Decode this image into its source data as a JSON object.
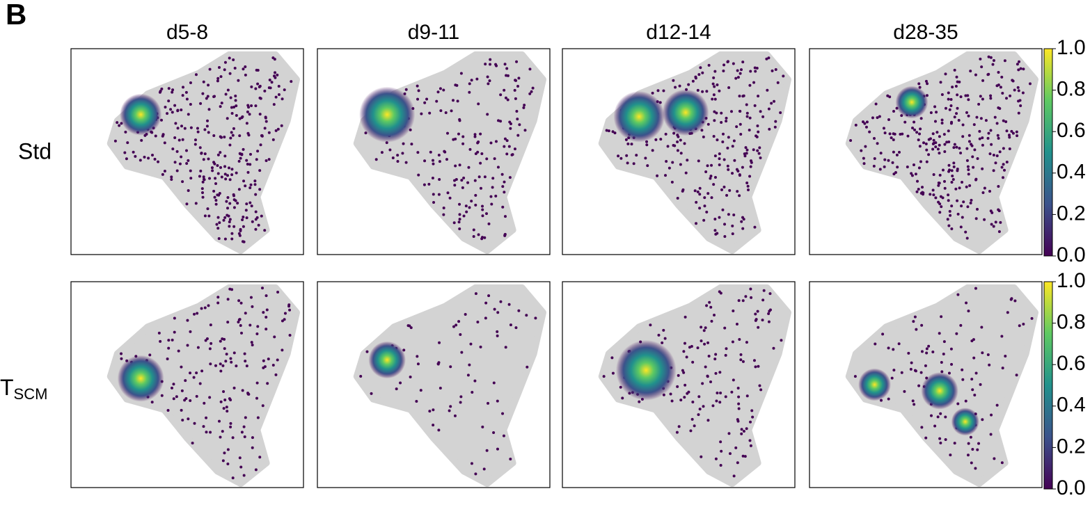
{
  "panel_label": "B",
  "columns": [
    "d5-8",
    "d9-11",
    "d12-14",
    "d28-35"
  ],
  "rows": [
    {
      "text": "Std"
    },
    {
      "text": "T",
      "subscript": "SCM"
    }
  ],
  "colorbar": {
    "lim": [
      0,
      1
    ],
    "ticks": [
      {
        "value": 0,
        "label": "0.0"
      },
      {
        "value": 0.2,
        "label": "0.2"
      },
      {
        "value": 0.4,
        "label": "0.4"
      },
      {
        "value": 0.6,
        "label": "0.6"
      },
      {
        "value": 0.8,
        "label": "0.8"
      },
      {
        "value": 1,
        "label": "1.0"
      }
    ],
    "colors": [
      "#440154",
      "#3b528b",
      "#21918c",
      "#5ec962",
      "#fde725"
    ]
  }
}
